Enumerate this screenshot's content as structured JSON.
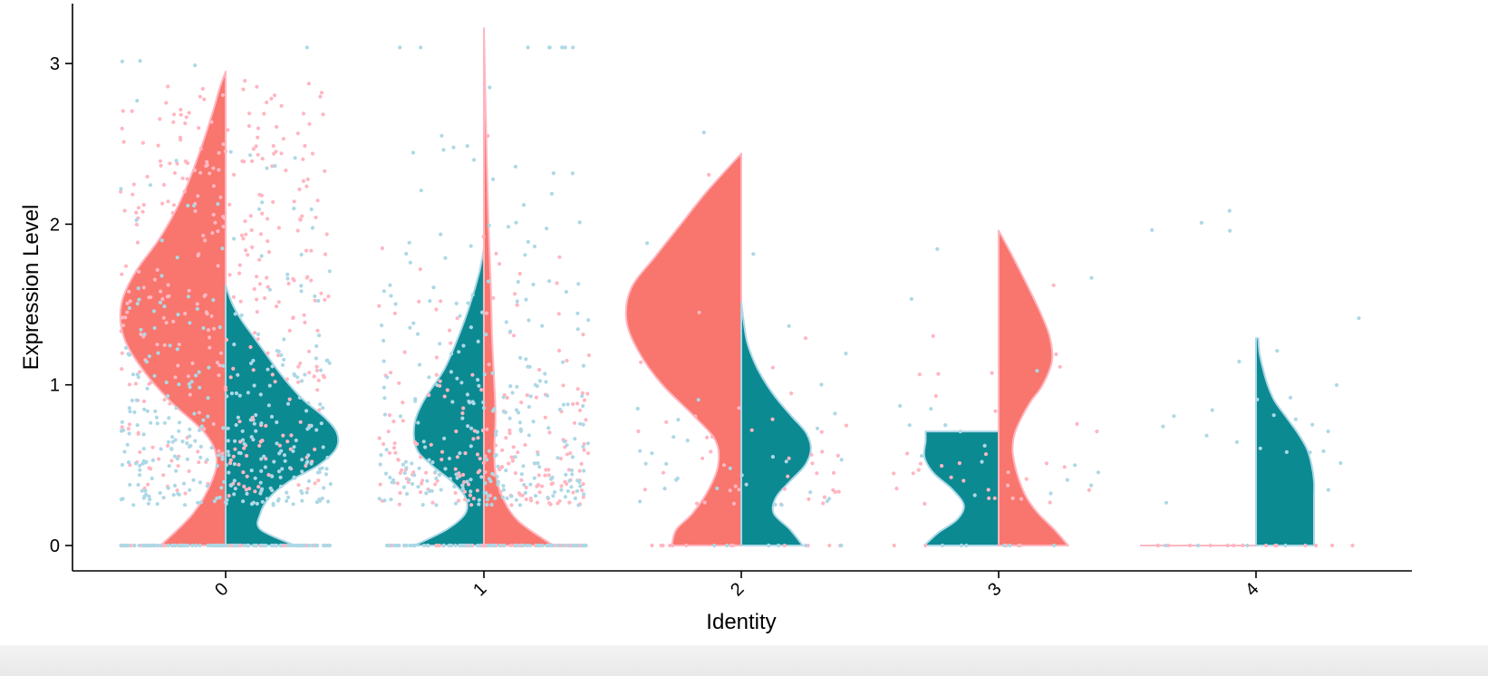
{
  "chart_data": {
    "type": "split-violin",
    "title": "",
    "xlabel": "Identity",
    "ylabel": "Expression Level",
    "ylim": [
      -0.16,
      3.38
    ],
    "yticks": [
      0,
      1,
      2,
      3
    ],
    "categories": [
      "0",
      "1",
      "2",
      "3",
      "4"
    ],
    "colors": {
      "salmon": "#F8766D",
      "teal": "#0B8A92",
      "outline_pink": "#FFB6C1",
      "outline_blue": "#ADD8E6",
      "point_pink": "#FFB6C1",
      "point_blue": "#ADD8E6",
      "axis": "#000000"
    },
    "groups": [
      {
        "identity": "0",
        "left": {
          "color": "salmon",
          "max": 2.95,
          "profile": [
            [
              0,
              0.56
            ],
            [
              0.2,
              0.28
            ],
            [
              0.4,
              0.12
            ],
            [
              0.55,
              0.08
            ],
            [
              0.7,
              0.18
            ],
            [
              0.9,
              0.48
            ],
            [
              1.1,
              0.72
            ],
            [
              1.3,
              0.88
            ],
            [
              1.5,
              0.9
            ],
            [
              1.7,
              0.78
            ],
            [
              1.9,
              0.58
            ],
            [
              2.1,
              0.42
            ],
            [
              2.3,
              0.3
            ],
            [
              2.5,
              0.2
            ],
            [
              2.7,
              0.11
            ],
            [
              2.85,
              0.05
            ],
            [
              2.95,
              0.0
            ]
          ]
        },
        "right": {
          "color": "teal",
          "max": 1.62,
          "profile": [
            [
              0,
              0.6
            ],
            [
              0.1,
              0.3
            ],
            [
              0.2,
              0.3
            ],
            [
              0.3,
              0.38
            ],
            [
              0.4,
              0.55
            ],
            [
              0.5,
              0.8
            ],
            [
              0.6,
              0.95
            ],
            [
              0.7,
              0.96
            ],
            [
              0.8,
              0.85
            ],
            [
              0.9,
              0.68
            ],
            [
              1.0,
              0.55
            ],
            [
              1.1,
              0.44
            ],
            [
              1.2,
              0.34
            ],
            [
              1.3,
              0.24
            ],
            [
              1.4,
              0.14
            ],
            [
              1.5,
              0.06
            ],
            [
              1.62,
              0.0
            ]
          ]
        }
      },
      {
        "identity": "1",
        "left": {
          "color": "teal",
          "max": 1.85,
          "profile": [
            [
              0,
              0.6
            ],
            [
              0.1,
              0.32
            ],
            [
              0.2,
              0.16
            ],
            [
              0.3,
              0.16
            ],
            [
              0.4,
              0.28
            ],
            [
              0.5,
              0.45
            ],
            [
              0.6,
              0.58
            ],
            [
              0.75,
              0.6
            ],
            [
              0.9,
              0.52
            ],
            [
              1.1,
              0.34
            ],
            [
              1.3,
              0.22
            ],
            [
              1.5,
              0.12
            ],
            [
              1.7,
              0.04
            ],
            [
              1.85,
              0.0
            ]
          ]
        },
        "right": {
          "color": "salmon",
          "max": 3.22,
          "profile": [
            [
              0,
              0.6
            ],
            [
              0.15,
              0.3
            ],
            [
              0.3,
              0.16
            ],
            [
              0.45,
              0.1
            ],
            [
              0.6,
              0.09
            ],
            [
              0.8,
              0.1
            ],
            [
              1.0,
              0.09
            ],
            [
              1.3,
              0.07
            ],
            [
              1.6,
              0.06
            ],
            [
              2.0,
              0.04
            ],
            [
              2.4,
              0.025
            ],
            [
              2.8,
              0.012
            ],
            [
              3.22,
              0.0
            ]
          ]
        }
      },
      {
        "identity": "2",
        "left": {
          "color": "salmon",
          "max": 2.44,
          "flat_top": true,
          "profile": [
            [
              0,
              0.6
            ],
            [
              0.1,
              0.56
            ],
            [
              0.2,
              0.42
            ],
            [
              0.35,
              0.28
            ],
            [
              0.5,
              0.2
            ],
            [
              0.65,
              0.22
            ],
            [
              0.8,
              0.4
            ],
            [
              1.0,
              0.68
            ],
            [
              1.2,
              0.88
            ],
            [
              1.4,
              0.99
            ],
            [
              1.6,
              0.95
            ],
            [
              1.8,
              0.74
            ],
            [
              2.0,
              0.52
            ],
            [
              2.2,
              0.3
            ],
            [
              2.44,
              0.0
            ]
          ]
        },
        "right": {
          "color": "teal",
          "max": 1.51,
          "flat_top": true,
          "profile": [
            [
              0,
              0.53
            ],
            [
              0.1,
              0.42
            ],
            [
              0.2,
              0.28
            ],
            [
              0.3,
              0.3
            ],
            [
              0.4,
              0.42
            ],
            [
              0.5,
              0.55
            ],
            [
              0.6,
              0.6
            ],
            [
              0.7,
              0.56
            ],
            [
              0.8,
              0.44
            ],
            [
              0.9,
              0.32
            ],
            [
              1.0,
              0.22
            ],
            [
              1.1,
              0.14
            ],
            [
              1.2,
              0.08
            ],
            [
              1.3,
              0.04
            ],
            [
              1.51,
              0.0
            ]
          ]
        }
      },
      {
        "identity": "3",
        "left": {
          "color": "teal",
          "max": 0.71,
          "flat_top": true,
          "profile": [
            [
              0,
              0.64
            ],
            [
              0.08,
              0.52
            ],
            [
              0.16,
              0.36
            ],
            [
              0.25,
              0.3
            ],
            [
              0.35,
              0.4
            ],
            [
              0.45,
              0.56
            ],
            [
              0.55,
              0.64
            ],
            [
              0.65,
              0.63
            ],
            [
              0.71,
              0.63
            ]
          ]
        },
        "right": {
          "color": "salmon",
          "max": 1.96,
          "flat_top": true,
          "profile": [
            [
              0,
              0.6
            ],
            [
              0.1,
              0.48
            ],
            [
              0.2,
              0.34
            ],
            [
              0.3,
              0.24
            ],
            [
              0.4,
              0.18
            ],
            [
              0.5,
              0.14
            ],
            [
              0.6,
              0.12
            ],
            [
              0.7,
              0.14
            ],
            [
              0.8,
              0.2
            ],
            [
              0.9,
              0.28
            ],
            [
              1.0,
              0.38
            ],
            [
              1.15,
              0.46
            ],
            [
              1.3,
              0.44
            ],
            [
              1.45,
              0.36
            ],
            [
              1.6,
              0.26
            ],
            [
              1.8,
              0.12
            ],
            [
              1.96,
              0.0
            ]
          ]
        }
      },
      {
        "identity": "4",
        "left": {
          "color": "salmon",
          "max": 0.0,
          "flat_line": true,
          "profile": []
        },
        "right": {
          "color": "teal",
          "max": 1.29,
          "flat_top": true,
          "profile": [
            [
              0,
              0.5
            ],
            [
              0.1,
              0.5
            ],
            [
              0.2,
              0.5
            ],
            [
              0.3,
              0.5
            ],
            [
              0.4,
              0.5
            ],
            [
              0.5,
              0.48
            ],
            [
              0.6,
              0.44
            ],
            [
              0.7,
              0.36
            ],
            [
              0.8,
              0.26
            ],
            [
              0.9,
              0.16
            ],
            [
              1.0,
              0.1
            ],
            [
              1.1,
              0.06
            ],
            [
              1.2,
              0.03
            ],
            [
              1.29,
              0.02
            ]
          ]
        }
      }
    ],
    "points": {
      "0": {
        "pink": 420,
        "blue": 420,
        "pink_rate": 2.6,
        "blue_rate": 1.8
      },
      "1": {
        "pink": 260,
        "blue": 330,
        "pink_rate": 1.3,
        "blue_rate": 2.0
      },
      "2": {
        "pink": 55,
        "blue": 40,
        "pink_rate": 1.1,
        "blue_rate": 1.6
      },
      "3": {
        "pink": 40,
        "blue": 25,
        "pink_rate": 1.4,
        "blue_rate": 1.8
      },
      "4": {
        "pink": 14,
        "blue": 30,
        "pink_rate": 0.0,
        "blue_rate": 1.7
      }
    }
  }
}
